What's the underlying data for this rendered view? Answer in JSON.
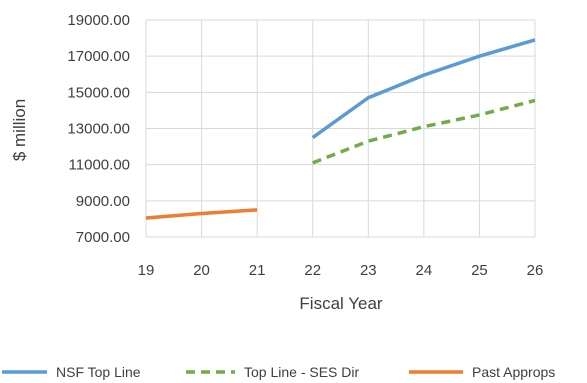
{
  "chart_data": {
    "type": "line",
    "title": "",
    "xlabel": "Fiscal Year",
    "ylabel": "$ million",
    "x": [
      "19",
      "20",
      "21",
      "22",
      "23",
      "24",
      "25",
      "26"
    ],
    "ylim": [
      7000,
      19000
    ],
    "yticks": [
      "7000.00",
      "9000.00",
      "11000.00",
      "13000.00",
      "15000.00",
      "17000.00",
      "19000.00"
    ],
    "grid": true,
    "legend_position": "bottom",
    "series": [
      {
        "name": "NSF Top Line",
        "color": "#5b9bd5",
        "style": "solid",
        "values": [
          null,
          null,
          null,
          12500,
          14700,
          15950,
          17000,
          17900
        ]
      },
      {
        "name": "Top Line - SES Dir",
        "color": "#70ad47",
        "style": "dashed",
        "values": [
          null,
          null,
          null,
          11100,
          12300,
          13100,
          13750,
          14550
        ]
      },
      {
        "name": "Past Approps",
        "color": "#ed7d31",
        "style": "solid",
        "values": [
          8050,
          8300,
          8500,
          null,
          null,
          null,
          null,
          null
        ]
      }
    ]
  }
}
